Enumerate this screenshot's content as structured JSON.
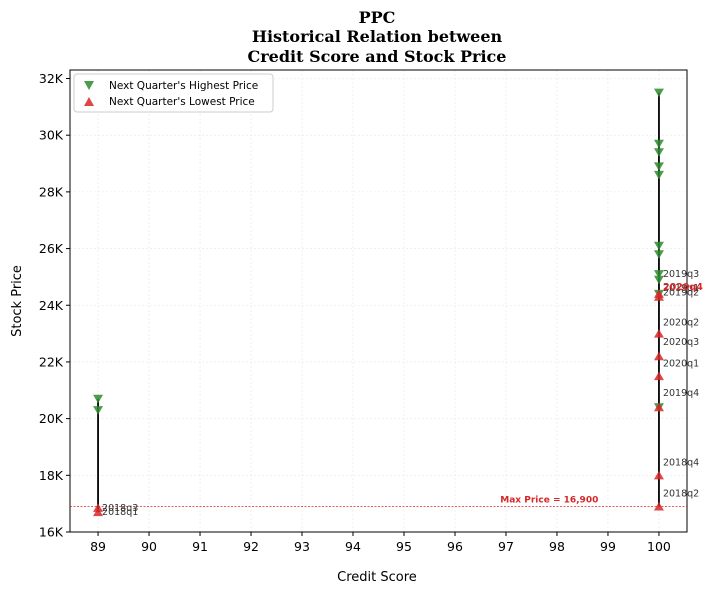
{
  "chart_data": {
    "type": "scatter",
    "title_lines": [
      "PPC",
      "Historical Relation between",
      "Credit Score and Stock Price"
    ],
    "xlabel": "Credit Score",
    "ylabel": "Stock Price",
    "xlim": [
      88.45,
      100.55
    ],
    "ylim": [
      16000,
      32300
    ],
    "x_ticks": [
      89,
      90,
      91,
      92,
      93,
      94,
      95,
      96,
      97,
      98,
      99,
      100
    ],
    "y_ticks": [
      16000,
      18000,
      20000,
      22000,
      24000,
      26000,
      28000,
      30000,
      32000
    ],
    "y_tick_labels": [
      "16K",
      "18K",
      "20K",
      "22K",
      "24K",
      "26K",
      "28K",
      "30K",
      "32K"
    ],
    "grid": true,
    "legend_position": "top-left",
    "series": [
      {
        "name": "Next Quarter's Highest Price",
        "marker": "triangle-down",
        "color": "#2e8b2e",
        "points": [
          {
            "x": 89,
            "y": 20700
          },
          {
            "x": 89,
            "y": 20300
          },
          {
            "x": 100,
            "y": 31500
          },
          {
            "x": 100,
            "y": 29700
          },
          {
            "x": 100,
            "y": 29400
          },
          {
            "x": 100,
            "y": 28900
          },
          {
            "x": 100,
            "y": 28600
          },
          {
            "x": 100,
            "y": 26100
          },
          {
            "x": 100,
            "y": 25800
          },
          {
            "x": 100,
            "y": 25100
          },
          {
            "x": 100,
            "y": 24900
          },
          {
            "x": 100,
            "y": 24400
          },
          {
            "x": 100,
            "y": 20400
          }
        ]
      },
      {
        "name": "Next Quarter's Lowest Price",
        "marker": "triangle-up",
        "color": "#d62728",
        "points": [
          {
            "x": 89,
            "y": 16850
          },
          {
            "x": 89,
            "y": 16700
          },
          {
            "x": 100,
            "y": 24300
          },
          {
            "x": 100,
            "y": 24400
          },
          {
            "x": 100,
            "y": 23000
          },
          {
            "x": 100,
            "y": 22200
          },
          {
            "x": 100,
            "y": 21500
          },
          {
            "x": 100,
            "y": 20400
          },
          {
            "x": 100,
            "y": 18000
          },
          {
            "x": 100,
            "y": 16900
          }
        ]
      }
    ],
    "range_lines": [
      {
        "x": 89,
        "y_min": 16700,
        "y_max": 20700
      },
      {
        "x": 100,
        "y_min": 16900,
        "y_max": 31500
      }
    ],
    "annotations": [
      {
        "text": "2018q3",
        "x": 89,
        "y": 16850,
        "style": "normal"
      },
      {
        "text": "2018q1",
        "x": 89,
        "y": 16700,
        "style": "normal"
      },
      {
        "text": "2019q3",
        "x": 100,
        "y": 25100,
        "style": "normal"
      },
      {
        "text": "2019q2",
        "x": 100,
        "y": 24450,
        "style": "normal"
      },
      {
        "text": "2019q1",
        "x": 100,
        "y": 24600,
        "style": "normal"
      },
      {
        "text": "2020q4",
        "x": 100,
        "y": 24650,
        "style": "highlight"
      },
      {
        "text": "2020q2",
        "x": 100,
        "y": 23400,
        "style": "normal"
      },
      {
        "text": "2020q3",
        "x": 100,
        "y": 22700,
        "style": "normal"
      },
      {
        "text": "2020q1",
        "x": 100,
        "y": 21950,
        "style": "normal"
      },
      {
        "text": "2019q4",
        "x": 100,
        "y": 20900,
        "style": "normal"
      },
      {
        "text": "2018q4",
        "x": 100,
        "y": 18450,
        "style": "normal"
      },
      {
        "text": "2018q2",
        "x": 100,
        "y": 17350,
        "style": "normal"
      }
    ],
    "reference_line": {
      "y": 16900,
      "label": "Max Price = 16,900",
      "label_x": 97.85,
      "color": "#d62728"
    }
  }
}
